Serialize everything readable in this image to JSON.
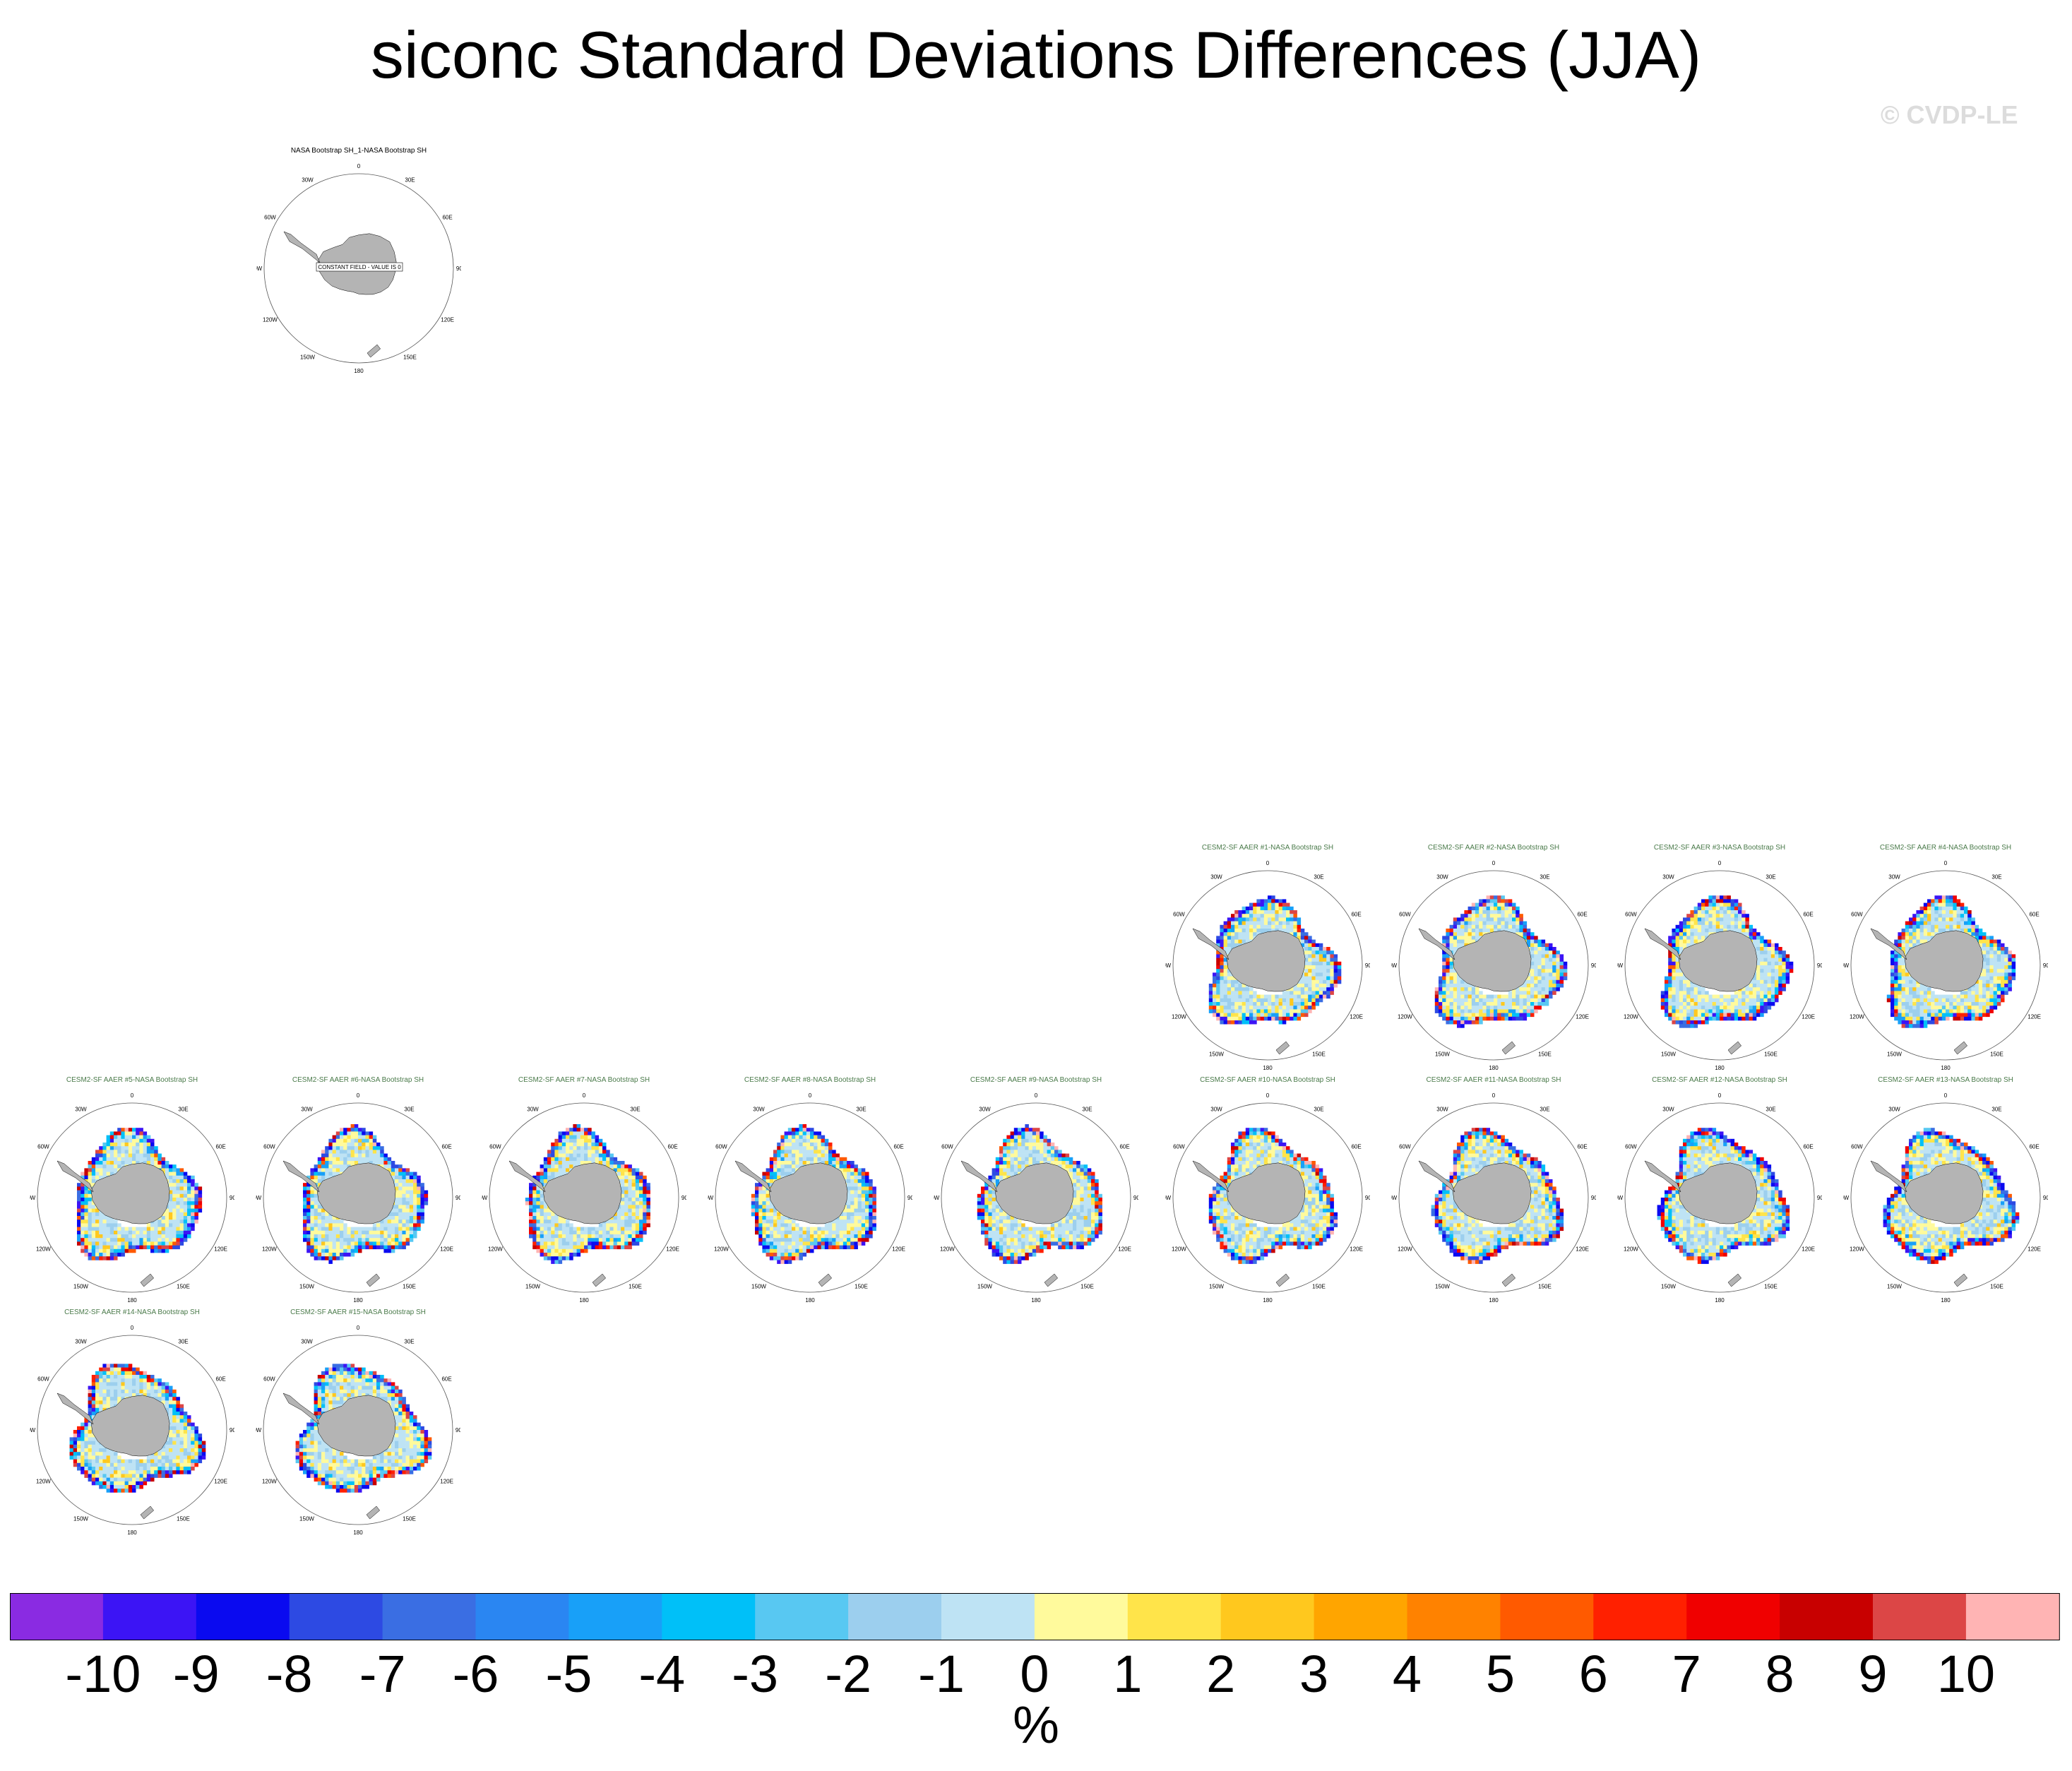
{
  "title": "siconc Standard Deviations Differences (JJA)",
  "watermark": "© CVDP-LE",
  "chart_data": {
    "type": "heatmap",
    "projection": "south-polar-stereographic",
    "title": "siconc Standard Deviations Differences (JJA)",
    "unit": "%",
    "colorbar": {
      "ticks": [
        "-10",
        "-9",
        "-8",
        "-7",
        "-6",
        "-5",
        "-4",
        "-3",
        "-2",
        "-1",
        "0",
        "1",
        "2",
        "3",
        "4",
        "5",
        "6",
        "7",
        "8",
        "9",
        "10"
      ],
      "colors": [
        "#8a2be2",
        "#3c14f5",
        "#0a0af0",
        "#2d4ae3",
        "#3a6ee3",
        "#2a86f2",
        "#18a0f8",
        "#00c0f8",
        "#58c8f2",
        "#9ccfee",
        "#bee3f4",
        "#fffa9c",
        "#ffe44a",
        "#ffc81e",
        "#ffa500",
        "#ff8200",
        "#ff5a00",
        "#ff2000",
        "#f00000",
        "#c80000",
        "#dc4646",
        "#ffb4b4"
      ]
    },
    "longitude_labels": [
      "0",
      "30E",
      "60E",
      "90E",
      "120E",
      "150E",
      "180",
      "150W",
      "120W",
      "90W",
      "60W",
      "30W"
    ],
    "panels": [
      {
        "title": "NASA Bootstrap SH_1-NASA Bootstrap SH",
        "kind": "obs",
        "annotation": "CONSTANT FIELD - VALUE IS 0"
      },
      {
        "title": "CESM2-SF AAER #1-NASA Bootstrap SH",
        "kind": "member"
      },
      {
        "title": "CESM2-SF AAER #2-NASA Bootstrap SH",
        "kind": "member"
      },
      {
        "title": "CESM2-SF AAER #3-NASA Bootstrap SH",
        "kind": "member"
      },
      {
        "title": "CESM2-SF AAER #4-NASA Bootstrap SH",
        "kind": "member"
      },
      {
        "title": "CESM2-SF AAER #5-NASA Bootstrap SH",
        "kind": "member"
      },
      {
        "title": "CESM2-SF AAER #6-NASA Bootstrap SH",
        "kind": "member"
      },
      {
        "title": "CESM2-SF AAER #7-NASA Bootstrap SH",
        "kind": "member"
      },
      {
        "title": "CESM2-SF AAER #8-NASA Bootstrap SH",
        "kind": "member"
      },
      {
        "title": "CESM2-SF AAER #9-NASA Bootstrap SH",
        "kind": "member"
      },
      {
        "title": "CESM2-SF AAER #10-NASA Bootstrap SH",
        "kind": "member"
      },
      {
        "title": "CESM2-SF AAER #11-NASA Bootstrap SH",
        "kind": "member"
      },
      {
        "title": "CESM2-SF AAER #12-NASA Bootstrap SH",
        "kind": "member"
      },
      {
        "title": "CESM2-SF AAER #13-NASA Bootstrap SH",
        "kind": "member"
      },
      {
        "title": "CESM2-SF AAER #14-NASA Bootstrap SH",
        "kind": "member"
      },
      {
        "title": "CESM2-SF AAER #15-NASA Bootstrap SH",
        "kind": "member"
      }
    ]
  }
}
